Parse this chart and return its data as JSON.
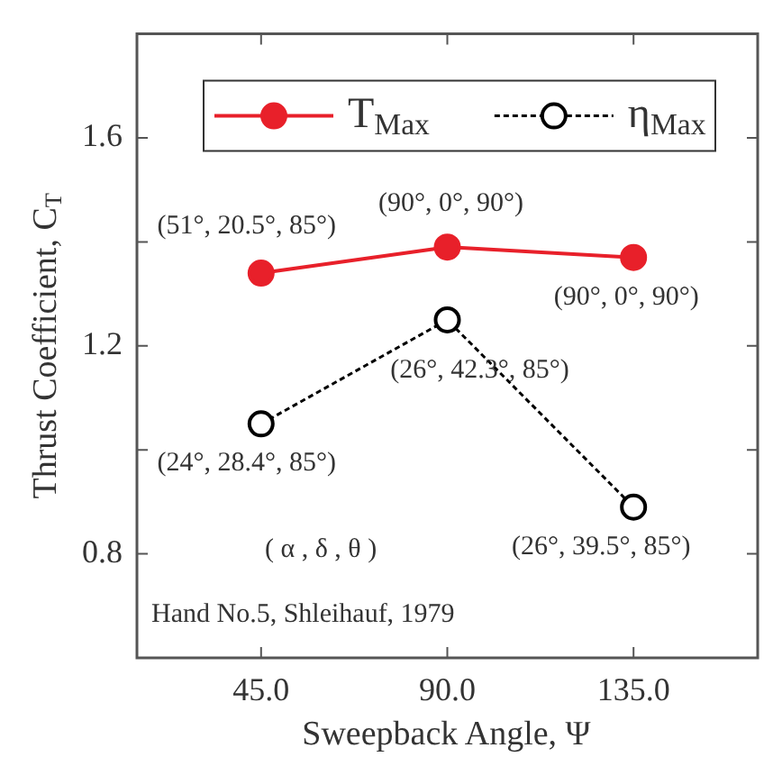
{
  "chart_data": {
    "type": "line",
    "xlabel": "Sweepback Angle, Ψ",
    "ylabel": "Thrust Coefficient, C$_{T}$",
    "x": [
      45,
      90,
      135
    ],
    "series": [
      {
        "name": "T$_{Max}$",
        "color": "#e8202a",
        "values": [
          1.34,
          1.39,
          1.37
        ],
        "line_style": "solid"
      },
      {
        "name": "η$_{Max}$",
        "color": "#000000",
        "values": [
          1.05,
          1.25,
          0.89
        ],
        "line_style": "dashed"
      }
    ],
    "xlim": [
      15,
      165
    ],
    "xticks": [
      {
        "value": 45,
        "label": "45.0"
      },
      {
        "value": 90,
        "label": "90.0"
      },
      {
        "value": 135,
        "label": "135.0"
      }
    ],
    "ylim": [
      0.6,
      1.8
    ],
    "yticks": [
      {
        "value": 0.8,
        "label": "0.8"
      },
      {
        "value": 1.0,
        "label": null
      },
      {
        "value": 1.2,
        "label": "1.2"
      },
      {
        "value": 1.4,
        "label": null
      },
      {
        "value": 1.6,
        "label": "1.6"
      }
    ],
    "annotations": [
      {
        "text": "(51°, 20.5°, 85°)",
        "x": 45,
        "y": 1.34
      },
      {
        "text": "(90°, 0°, 90°)",
        "x": 90,
        "y": 1.39
      },
      {
        "text": "(90°, 0°, 90°)",
        "x": 135,
        "y": 1.37
      },
      {
        "text": "(24°, 28.4°, 85°)",
        "x": 45,
        "y": 1.05
      },
      {
        "text": "(26°, 42.3°, 85°)",
        "x": 90,
        "y": 1.25
      },
      {
        "text": "(26°, 39.5°, 85°)",
        "x": 135,
        "y": 0.89
      },
      "( α , δ , θ )",
      "Hand No.5, Shleihauf, 1979"
    ],
    "marker": "circle",
    "grid": false,
    "legend": "top"
  }
}
